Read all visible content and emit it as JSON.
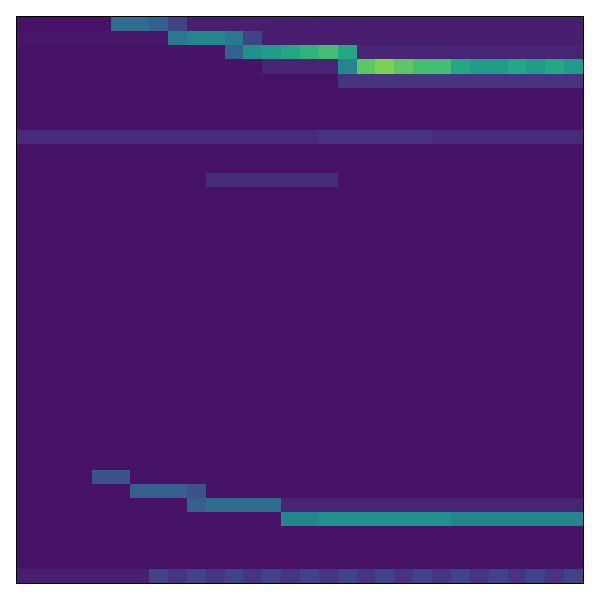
{
  "chart_data": {
    "type": "heatmap",
    "color": "viridis",
    "tick_labels": false,
    "x": [
      0,
      1,
      2,
      3,
      4,
      5,
      6,
      7,
      8,
      9,
      10,
      11,
      12,
      13,
      14,
      15,
      16,
      17,
      18,
      19,
      20,
      21,
      22,
      23,
      24,
      25,
      26,
      27,
      28,
      29
    ],
    "y": [
      0,
      1,
      2,
      3,
      4,
      5,
      6,
      7,
      8,
      9,
      10,
      11,
      12,
      13,
      14,
      15,
      16,
      17,
      18,
      19,
      20,
      21,
      22,
      23,
      24,
      25,
      26,
      27,
      28,
      29,
      30,
      31,
      32,
      33,
      34,
      35,
      36,
      37,
      38,
      39
    ],
    "xlim": [
      -0.5,
      29.5
    ],
    "ylim": [
      39.5,
      -0.5
    ],
    "zlim": [
      0,
      1
    ],
    "cells": [
      [
        0.05,
        0.05,
        0.05,
        0.05,
        0.05,
        0.35,
        0.35,
        0.3,
        0.2,
        0.08,
        0.08,
        0.08,
        0.08,
        0.08,
        0.08,
        0.08,
        0.08,
        0.08,
        0.08,
        0.08,
        0.08,
        0.08,
        0.08,
        0.08,
        0.08,
        0.08,
        0.08,
        0.08,
        0.08,
        0.08
      ],
      [
        0.06,
        0.06,
        0.06,
        0.06,
        0.06,
        0.06,
        0.06,
        0.06,
        0.4,
        0.45,
        0.45,
        0.4,
        0.2,
        0.08,
        0.08,
        0.08,
        0.08,
        0.08,
        0.08,
        0.08,
        0.08,
        0.08,
        0.08,
        0.08,
        0.08,
        0.08,
        0.08,
        0.08,
        0.08,
        0.08
      ],
      [
        0.05,
        0.05,
        0.05,
        0.05,
        0.05,
        0.05,
        0.05,
        0.05,
        0.05,
        0.05,
        0.05,
        0.3,
        0.5,
        0.55,
        0.6,
        0.65,
        0.7,
        0.6,
        0.1,
        0.1,
        0.1,
        0.1,
        0.1,
        0.1,
        0.1,
        0.1,
        0.1,
        0.1,
        0.1,
        0.1
      ],
      [
        0.05,
        0.05,
        0.05,
        0.05,
        0.05,
        0.05,
        0.05,
        0.05,
        0.05,
        0.05,
        0.05,
        0.05,
        0.05,
        0.1,
        0.1,
        0.1,
        0.1,
        0.45,
        0.75,
        0.8,
        0.75,
        0.7,
        0.7,
        0.6,
        0.55,
        0.55,
        0.6,
        0.55,
        0.6,
        0.55
      ],
      [
        0.05,
        0.05,
        0.05,
        0.05,
        0.05,
        0.05,
        0.05,
        0.05,
        0.05,
        0.05,
        0.05,
        0.05,
        0.05,
        0.05,
        0.05,
        0.05,
        0.05,
        0.15,
        0.15,
        0.15,
        0.15,
        0.15,
        0.15,
        0.15,
        0.15,
        0.15,
        0.15,
        0.15,
        0.15,
        0.15
      ],
      [
        0.05,
        0.05,
        0.05,
        0.05,
        0.05,
        0.05,
        0.05,
        0.05,
        0.05,
        0.05,
        0.05,
        0.05,
        0.05,
        0.05,
        0.05,
        0.05,
        0.05,
        0.05,
        0.05,
        0.05,
        0.05,
        0.05,
        0.05,
        0.05,
        0.05,
        0.05,
        0.05,
        0.05,
        0.05,
        0.05
      ],
      [
        0.05,
        0.05,
        0.05,
        0.05,
        0.05,
        0.05,
        0.05,
        0.05,
        0.05,
        0.05,
        0.05,
        0.05,
        0.05,
        0.05,
        0.05,
        0.05,
        0.05,
        0.05,
        0.05,
        0.05,
        0.05,
        0.05,
        0.05,
        0.05,
        0.05,
        0.05,
        0.05,
        0.05,
        0.05,
        0.05
      ],
      [
        0.05,
        0.05,
        0.05,
        0.05,
        0.05,
        0.05,
        0.05,
        0.05,
        0.05,
        0.05,
        0.05,
        0.05,
        0.05,
        0.05,
        0.05,
        0.05,
        0.05,
        0.05,
        0.05,
        0.05,
        0.05,
        0.05,
        0.05,
        0.05,
        0.05,
        0.05,
        0.05,
        0.05,
        0.05,
        0.05
      ],
      [
        0.12,
        0.12,
        0.12,
        0.12,
        0.12,
        0.12,
        0.12,
        0.12,
        0.12,
        0.12,
        0.12,
        0.12,
        0.12,
        0.12,
        0.12,
        0.12,
        0.15,
        0.15,
        0.15,
        0.15,
        0.15,
        0.15,
        0.12,
        0.12,
        0.12,
        0.12,
        0.12,
        0.12,
        0.12,
        0.12
      ],
      [
        0.05,
        0.05,
        0.05,
        0.05,
        0.05,
        0.05,
        0.05,
        0.05,
        0.05,
        0.05,
        0.05,
        0.05,
        0.05,
        0.05,
        0.05,
        0.05,
        0.05,
        0.05,
        0.05,
        0.05,
        0.05,
        0.05,
        0.05,
        0.05,
        0.05,
        0.05,
        0.05,
        0.05,
        0.05,
        0.05
      ],
      [
        0.05,
        0.05,
        0.05,
        0.05,
        0.05,
        0.05,
        0.05,
        0.05,
        0.05,
        0.05,
        0.05,
        0.05,
        0.05,
        0.05,
        0.05,
        0.05,
        0.05,
        0.05,
        0.05,
        0.05,
        0.05,
        0.05,
        0.05,
        0.05,
        0.05,
        0.05,
        0.05,
        0.05,
        0.05,
        0.05
      ],
      [
        0.05,
        0.05,
        0.05,
        0.05,
        0.05,
        0.05,
        0.05,
        0.05,
        0.05,
        0.05,
        0.12,
        0.12,
        0.12,
        0.12,
        0.12,
        0.12,
        0.12,
        0.05,
        0.05,
        0.05,
        0.05,
        0.05,
        0.05,
        0.05,
        0.05,
        0.05,
        0.05,
        0.05,
        0.05,
        0.05
      ],
      [
        0.05,
        0.05,
        0.05,
        0.05,
        0.05,
        0.05,
        0.05,
        0.05,
        0.05,
        0.05,
        0.05,
        0.05,
        0.05,
        0.05,
        0.05,
        0.05,
        0.05,
        0.05,
        0.05,
        0.05,
        0.05,
        0.05,
        0.05,
        0.05,
        0.05,
        0.05,
        0.05,
        0.05,
        0.05,
        0.05
      ],
      [
        0.05,
        0.05,
        0.05,
        0.05,
        0.05,
        0.05,
        0.05,
        0.05,
        0.05,
        0.05,
        0.05,
        0.05,
        0.05,
        0.05,
        0.05,
        0.05,
        0.05,
        0.05,
        0.05,
        0.05,
        0.05,
        0.05,
        0.05,
        0.05,
        0.05,
        0.05,
        0.05,
        0.05,
        0.05,
        0.05
      ],
      [
        0.05,
        0.05,
        0.05,
        0.05,
        0.05,
        0.05,
        0.05,
        0.05,
        0.05,
        0.05,
        0.05,
        0.05,
        0.05,
        0.05,
        0.05,
        0.05,
        0.05,
        0.05,
        0.05,
        0.05,
        0.05,
        0.05,
        0.05,
        0.05,
        0.05,
        0.05,
        0.05,
        0.05,
        0.05,
        0.05
      ],
      [
        0.05,
        0.05,
        0.05,
        0.05,
        0.05,
        0.05,
        0.05,
        0.05,
        0.05,
        0.05,
        0.05,
        0.05,
        0.05,
        0.05,
        0.05,
        0.05,
        0.05,
        0.05,
        0.05,
        0.05,
        0.05,
        0.05,
        0.05,
        0.05,
        0.05,
        0.05,
        0.05,
        0.05,
        0.05,
        0.05
      ],
      [
        0.05,
        0.05,
        0.05,
        0.05,
        0.05,
        0.05,
        0.05,
        0.05,
        0.05,
        0.05,
        0.05,
        0.05,
        0.05,
        0.05,
        0.05,
        0.05,
        0.05,
        0.05,
        0.05,
        0.05,
        0.05,
        0.05,
        0.05,
        0.05,
        0.05,
        0.05,
        0.05,
        0.05,
        0.05,
        0.05
      ],
      [
        0.05,
        0.05,
        0.05,
        0.05,
        0.05,
        0.05,
        0.05,
        0.05,
        0.05,
        0.05,
        0.05,
        0.05,
        0.05,
        0.05,
        0.05,
        0.05,
        0.05,
        0.05,
        0.05,
        0.05,
        0.05,
        0.05,
        0.05,
        0.05,
        0.05,
        0.05,
        0.05,
        0.05,
        0.05,
        0.05
      ],
      [
        0.05,
        0.05,
        0.05,
        0.05,
        0.05,
        0.05,
        0.05,
        0.05,
        0.05,
        0.05,
        0.05,
        0.05,
        0.05,
        0.05,
        0.05,
        0.05,
        0.05,
        0.05,
        0.05,
        0.05,
        0.05,
        0.05,
        0.05,
        0.05,
        0.05,
        0.05,
        0.05,
        0.05,
        0.05,
        0.05
      ],
      [
        0.05,
        0.05,
        0.05,
        0.05,
        0.05,
        0.05,
        0.05,
        0.05,
        0.05,
        0.05,
        0.05,
        0.05,
        0.05,
        0.05,
        0.05,
        0.05,
        0.05,
        0.05,
        0.05,
        0.05,
        0.05,
        0.05,
        0.05,
        0.05,
        0.05,
        0.05,
        0.05,
        0.05,
        0.05,
        0.05
      ],
      [
        0.05,
        0.05,
        0.05,
        0.05,
        0.05,
        0.05,
        0.05,
        0.05,
        0.05,
        0.05,
        0.05,
        0.05,
        0.05,
        0.05,
        0.05,
        0.05,
        0.05,
        0.05,
        0.05,
        0.05,
        0.05,
        0.05,
        0.05,
        0.05,
        0.05,
        0.05,
        0.05,
        0.05,
        0.05,
        0.05
      ],
      [
        0.05,
        0.05,
        0.05,
        0.05,
        0.05,
        0.05,
        0.05,
        0.05,
        0.05,
        0.05,
        0.05,
        0.05,
        0.05,
        0.05,
        0.05,
        0.05,
        0.05,
        0.05,
        0.05,
        0.05,
        0.05,
        0.05,
        0.05,
        0.05,
        0.05,
        0.05,
        0.05,
        0.05,
        0.05,
        0.05
      ],
      [
        0.05,
        0.05,
        0.05,
        0.05,
        0.05,
        0.05,
        0.05,
        0.05,
        0.05,
        0.05,
        0.05,
        0.05,
        0.05,
        0.05,
        0.05,
        0.05,
        0.05,
        0.05,
        0.05,
        0.05,
        0.05,
        0.05,
        0.05,
        0.05,
        0.05,
        0.05,
        0.05,
        0.05,
        0.05,
        0.05
      ],
      [
        0.05,
        0.05,
        0.05,
        0.05,
        0.05,
        0.05,
        0.05,
        0.05,
        0.05,
        0.05,
        0.05,
        0.05,
        0.05,
        0.05,
        0.05,
        0.05,
        0.05,
        0.05,
        0.05,
        0.05,
        0.05,
        0.05,
        0.05,
        0.05,
        0.05,
        0.05,
        0.05,
        0.05,
        0.05,
        0.05
      ],
      [
        0.05,
        0.05,
        0.05,
        0.05,
        0.05,
        0.05,
        0.05,
        0.05,
        0.05,
        0.05,
        0.05,
        0.05,
        0.05,
        0.05,
        0.05,
        0.05,
        0.05,
        0.05,
        0.05,
        0.05,
        0.05,
        0.05,
        0.05,
        0.05,
        0.05,
        0.05,
        0.05,
        0.05,
        0.05,
        0.05
      ],
      [
        0.05,
        0.05,
        0.05,
        0.05,
        0.05,
        0.05,
        0.05,
        0.05,
        0.05,
        0.05,
        0.05,
        0.05,
        0.05,
        0.05,
        0.05,
        0.05,
        0.05,
        0.05,
        0.05,
        0.05,
        0.05,
        0.05,
        0.05,
        0.05,
        0.05,
        0.05,
        0.05,
        0.05,
        0.05,
        0.05
      ],
      [
        0.05,
        0.05,
        0.05,
        0.05,
        0.05,
        0.05,
        0.05,
        0.05,
        0.05,
        0.05,
        0.05,
        0.05,
        0.05,
        0.05,
        0.05,
        0.05,
        0.05,
        0.05,
        0.05,
        0.05,
        0.05,
        0.05,
        0.05,
        0.05,
        0.05,
        0.05,
        0.05,
        0.05,
        0.05,
        0.05
      ],
      [
        0.05,
        0.05,
        0.05,
        0.05,
        0.05,
        0.05,
        0.05,
        0.05,
        0.05,
        0.05,
        0.05,
        0.05,
        0.05,
        0.05,
        0.05,
        0.05,
        0.05,
        0.05,
        0.05,
        0.05,
        0.05,
        0.05,
        0.05,
        0.05,
        0.05,
        0.05,
        0.05,
        0.05,
        0.05,
        0.05
      ],
      [
        0.05,
        0.05,
        0.05,
        0.05,
        0.05,
        0.05,
        0.05,
        0.05,
        0.05,
        0.05,
        0.05,
        0.05,
        0.05,
        0.05,
        0.05,
        0.05,
        0.05,
        0.05,
        0.05,
        0.05,
        0.05,
        0.05,
        0.05,
        0.05,
        0.05,
        0.05,
        0.05,
        0.05,
        0.05,
        0.05
      ],
      [
        0.05,
        0.05,
        0.05,
        0.05,
        0.05,
        0.05,
        0.05,
        0.05,
        0.05,
        0.05,
        0.05,
        0.05,
        0.05,
        0.05,
        0.05,
        0.05,
        0.05,
        0.05,
        0.05,
        0.05,
        0.05,
        0.05,
        0.05,
        0.05,
        0.05,
        0.05,
        0.05,
        0.05,
        0.05,
        0.05
      ],
      [
        0.05,
        0.05,
        0.05,
        0.05,
        0.05,
        0.05,
        0.05,
        0.05,
        0.05,
        0.05,
        0.05,
        0.05,
        0.05,
        0.05,
        0.05,
        0.05,
        0.05,
        0.05,
        0.05,
        0.05,
        0.05,
        0.05,
        0.05,
        0.05,
        0.05,
        0.05,
        0.05,
        0.05,
        0.05,
        0.05
      ],
      [
        0.05,
        0.05,
        0.05,
        0.05,
        0.05,
        0.05,
        0.05,
        0.05,
        0.05,
        0.05,
        0.05,
        0.05,
        0.05,
        0.05,
        0.05,
        0.05,
        0.05,
        0.05,
        0.05,
        0.05,
        0.05,
        0.05,
        0.05,
        0.05,
        0.05,
        0.05,
        0.05,
        0.05,
        0.05,
        0.05
      ],
      [
        0.05,
        0.05,
        0.05,
        0.05,
        0.25,
        0.25,
        0.05,
        0.05,
        0.05,
        0.05,
        0.05,
        0.05,
        0.05,
        0.05,
        0.05,
        0.05,
        0.05,
        0.05,
        0.05,
        0.05,
        0.05,
        0.05,
        0.05,
        0.05,
        0.05,
        0.05,
        0.05,
        0.05,
        0.05,
        0.05
      ],
      [
        0.05,
        0.05,
        0.05,
        0.05,
        0.05,
        0.05,
        0.3,
        0.3,
        0.3,
        0.25,
        0.05,
        0.05,
        0.05,
        0.05,
        0.05,
        0.05,
        0.05,
        0.05,
        0.05,
        0.05,
        0.05,
        0.05,
        0.05,
        0.05,
        0.05,
        0.05,
        0.05,
        0.05,
        0.05,
        0.05
      ],
      [
        0.05,
        0.05,
        0.05,
        0.05,
        0.05,
        0.05,
        0.05,
        0.05,
        0.05,
        0.3,
        0.35,
        0.35,
        0.35,
        0.35,
        0.1,
        0.1,
        0.1,
        0.1,
        0.1,
        0.1,
        0.1,
        0.1,
        0.1,
        0.1,
        0.1,
        0.1,
        0.1,
        0.1,
        0.1,
        0.1
      ],
      [
        0.05,
        0.05,
        0.05,
        0.05,
        0.05,
        0.05,
        0.05,
        0.05,
        0.05,
        0.05,
        0.05,
        0.05,
        0.05,
        0.05,
        0.45,
        0.45,
        0.5,
        0.5,
        0.5,
        0.5,
        0.5,
        0.5,
        0.5,
        0.45,
        0.45,
        0.45,
        0.45,
        0.45,
        0.45,
        0.45
      ],
      [
        0.05,
        0.05,
        0.05,
        0.05,
        0.05,
        0.05,
        0.05,
        0.05,
        0.05,
        0.05,
        0.05,
        0.05,
        0.05,
        0.05,
        0.05,
        0.05,
        0.05,
        0.05,
        0.05,
        0.05,
        0.05,
        0.05,
        0.05,
        0.05,
        0.05,
        0.05,
        0.05,
        0.05,
        0.05,
        0.05
      ],
      [
        0.05,
        0.05,
        0.05,
        0.05,
        0.05,
        0.05,
        0.05,
        0.05,
        0.05,
        0.05,
        0.05,
        0.05,
        0.05,
        0.05,
        0.05,
        0.05,
        0.05,
        0.05,
        0.05,
        0.05,
        0.05,
        0.05,
        0.05,
        0.05,
        0.05,
        0.05,
        0.05,
        0.05,
        0.05,
        0.05
      ],
      [
        0.05,
        0.05,
        0.05,
        0.05,
        0.05,
        0.05,
        0.05,
        0.05,
        0.05,
        0.05,
        0.05,
        0.05,
        0.05,
        0.05,
        0.05,
        0.05,
        0.05,
        0.05,
        0.05,
        0.05,
        0.05,
        0.05,
        0.05,
        0.05,
        0.05,
        0.05,
        0.05,
        0.05,
        0.05,
        0.05
      ],
      [
        0.08,
        0.08,
        0.08,
        0.08,
        0.08,
        0.08,
        0.08,
        0.2,
        0.15,
        0.2,
        0.15,
        0.2,
        0.15,
        0.2,
        0.15,
        0.2,
        0.15,
        0.2,
        0.15,
        0.2,
        0.15,
        0.2,
        0.15,
        0.2,
        0.15,
        0.2,
        0.15,
        0.2,
        0.15,
        0.2
      ]
    ]
  }
}
